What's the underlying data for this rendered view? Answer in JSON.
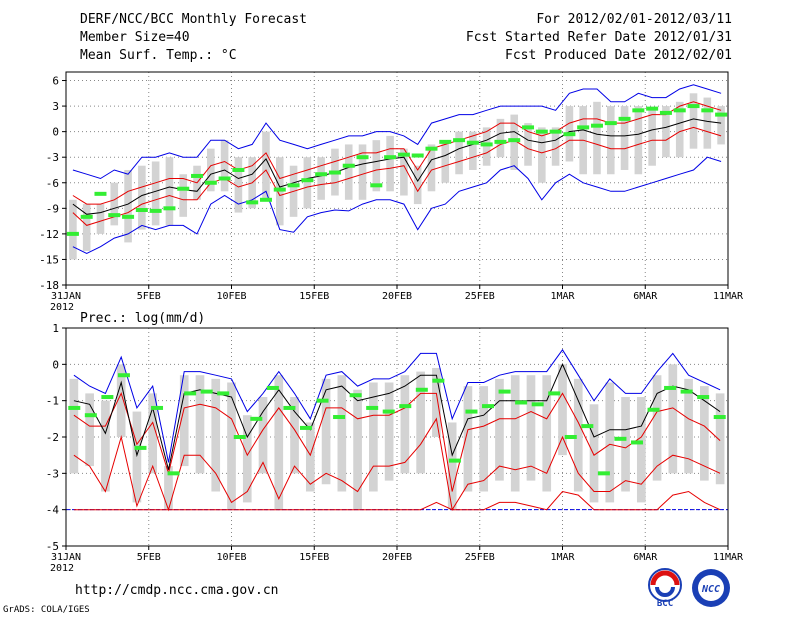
{
  "header": {
    "left": [
      "DERF/NCC/BCC Monthly Forecast",
      "Member Size=40",
      "Mean Surf. Temp.: °C"
    ],
    "right": [
      "For 2012/02/01-2012/03/11",
      "Fcst Started Refer Date 2012/01/31",
      "Fcst Produced Date 2012/02/01"
    ]
  },
  "footer": {
    "url": "http://cmdp.ncc.cma.gov.cn",
    "credit": "GrADS: COLA/IGES",
    "logo_left_text": "BCC",
    "logo_right_text": "NCC"
  },
  "chart_data": [
    {
      "type": "line",
      "title": "Mean Surf. Temp.: °C",
      "ylabel": "",
      "ylim": [
        -18,
        7
      ],
      "yticks": [
        6,
        3,
        0,
        -3,
        -6,
        -9,
        -12,
        -15,
        -18
      ],
      "ytick_labels": [
        "6",
        "3",
        "0",
        "-3",
        "-6",
        "-9",
        "-12",
        "-15",
        "-18"
      ],
      "xlim": [
        0,
        40
      ],
      "xticks": [
        0,
        5,
        10,
        15,
        20,
        25,
        30,
        35,
        40
      ],
      "xtick_labels": [
        "31JAN",
        "5FEB",
        "10FEB",
        "15FEB",
        "20FEB",
        "25FEB",
        "1MAR",
        "6MAR",
        "11MAR"
      ],
      "xtick_sublabel": "2012",
      "series": [
        {
          "name": "ensemble max",
          "color": "#0000e6",
          "values": [
            -4.5,
            -5,
            -5.5,
            -4.5,
            -5,
            -3,
            -3,
            -2.5,
            -3,
            -3,
            -1,
            -1,
            -2,
            -1.5,
            1,
            -1,
            -1.5,
            -2,
            -1.5,
            -1,
            -0.5,
            -0.5,
            0,
            0,
            -0.5,
            -1.5,
            1,
            1.5,
            2,
            2,
            2.5,
            3,
            3,
            3,
            3,
            2.5,
            4.5,
            5,
            5,
            3.5,
            3.5,
            4.5,
            4,
            4,
            5,
            5.5,
            5,
            4.5
          ]
        },
        {
          "name": "upper quartile",
          "color": "#e60000",
          "values": [
            -7.5,
            -8.5,
            -8.5,
            -8,
            -7,
            -6.5,
            -6,
            -5.5,
            -5.5,
            -6,
            -4,
            -3.5,
            -4.5,
            -4,
            -2.5,
            -5.5,
            -5,
            -4.5,
            -4,
            -3.5,
            -3,
            -2.5,
            -2.5,
            -2,
            -2,
            -4.5,
            -2,
            -1.5,
            -1,
            -0.5,
            0,
            1,
            1,
            0,
            -0.5,
            0,
            1,
            1.5,
            1.5,
            1,
            1,
            1.5,
            2,
            2,
            3,
            3.5,
            3,
            2.5
          ]
        },
        {
          "name": "ensemble mean",
          "color": "#000000",
          "values": [
            -8.5,
            -9.7,
            -9.5,
            -9,
            -8.5,
            -7.5,
            -7,
            -6.5,
            -6.8,
            -7,
            -5,
            -4.5,
            -5.5,
            -5,
            -3.2,
            -6.5,
            -6,
            -5.5,
            -5.2,
            -4.8,
            -4.2,
            -3.8,
            -3.5,
            -3.2,
            -3,
            -5.8,
            -3.3,
            -2.8,
            -2,
            -1.5,
            -1,
            -0.2,
            0,
            -1,
            -1.3,
            -1,
            0,
            0.2,
            -0.3,
            -0.5,
            -0.5,
            -0.3,
            0.2,
            0.5,
            1,
            1.5,
            1.2,
            1
          ]
        },
        {
          "name": "lower quartile",
          "color": "#e60000",
          "values": [
            -9.5,
            -11,
            -10.5,
            -10,
            -9.5,
            -8.5,
            -8,
            -7.5,
            -8,
            -8,
            -6,
            -5.5,
            -6.5,
            -6,
            -4.5,
            -7.5,
            -7,
            -6.5,
            -6.2,
            -6,
            -5.5,
            -5,
            -4.5,
            -4.3,
            -4,
            -7,
            -4.5,
            -4,
            -3.5,
            -3,
            -2.5,
            -1.5,
            -1,
            -2,
            -2.5,
            -2,
            -1,
            -1,
            -1.5,
            -2,
            -2,
            -1.5,
            -1,
            -1,
            0,
            0.5,
            0,
            -0.5
          ]
        },
        {
          "name": "ensemble min",
          "color": "#0000e6",
          "values": [
            -13.5,
            -14.3,
            -13.5,
            -12.5,
            -12,
            -11,
            -11.5,
            -11,
            -11,
            -12,
            -8.5,
            -7.5,
            -8.5,
            -8,
            -7,
            -11.5,
            -11.8,
            -10,
            -9.5,
            -9.2,
            -9.3,
            -8.5,
            -8,
            -8,
            -8.5,
            -11.5,
            -9,
            -8.5,
            -7,
            -6.5,
            -6,
            -4.5,
            -4,
            -5.5,
            -8,
            -6,
            -5,
            -6,
            -6.5,
            -7,
            -7,
            -6.5,
            -6,
            -5.5,
            -5,
            -4.5,
            -3,
            -3.5
          ]
        },
        {
          "name": "observation",
          "color": "#33ee33",
          "values": [
            -12,
            -10,
            -7.3,
            -9.8,
            -10,
            -9.2,
            -9.3,
            -9,
            -6.7,
            -5.2,
            -6,
            -5.5,
            -4.5,
            -8.3,
            -8,
            -6.8,
            -6.3,
            -5.7,
            -5,
            -4.8,
            -4,
            -3,
            -6.3,
            -3,
            -2.7,
            -2.8,
            -2,
            -1.2,
            -1,
            -1.3,
            -1.5,
            -1.2,
            -1,
            0.5,
            0,
            0,
            -0.3,
            0.5,
            0.7,
            1,
            1.5,
            2.5,
            2.7,
            2.2,
            2.5,
            3,
            2.5,
            2
          ]
        }
      ],
      "boxes": {
        "name": "ensemble spread (grey bars)",
        "color": "#d3d3d3",
        "low": [
          -15,
          -14,
          -12,
          -11,
          -13,
          -11.5,
          -11,
          -11,
          -10,
          -8,
          -7,
          -7,
          -9.5,
          -9,
          -8,
          -11,
          -10,
          -9,
          -8,
          -7.5,
          -8,
          -8,
          -7,
          -7,
          -7.5,
          -8.5,
          -7,
          -6,
          -5,
          -4.5,
          -4,
          -3,
          -4.5,
          -4,
          -6,
          -4,
          -3.5,
          -5,
          -5,
          -5,
          -4.5,
          -5,
          -4,
          -3,
          -3,
          -2,
          -2,
          -1.5
        ],
        "high": [
          -8,
          -8.5,
          -8.5,
          -6,
          -4.5,
          -4,
          -3.5,
          -3,
          -5,
          -4,
          -2,
          -1,
          -3,
          -3,
          0,
          -3,
          -4,
          -3,
          -3,
          -2,
          -1.5,
          -1.5,
          -1,
          -0.5,
          -2,
          -4,
          -1.5,
          -1,
          0,
          0,
          0.5,
          1.5,
          2,
          1,
          0.5,
          0.5,
          3,
          3,
          3.5,
          3,
          3,
          3,
          2.5,
          3,
          3.5,
          4.5,
          4,
          3
        ]
      }
    },
    {
      "type": "line",
      "title": "Prec.: log(mm/d)",
      "ylabel": "",
      "ylim": [
        -5,
        1
      ],
      "yticks": [
        1,
        0,
        -1,
        -2,
        -3,
        -4,
        -5
      ],
      "ytick_labels": [
        "1",
        "0",
        "-1",
        "-2",
        "-3",
        "-4",
        "-5"
      ],
      "xlim": [
        0,
        40
      ],
      "xticks": [
        0,
        5,
        10,
        15,
        20,
        25,
        30,
        35,
        40
      ],
      "xtick_labels": [
        "31JAN",
        "5FEB",
        "10FEB",
        "15FEB",
        "20FEB",
        "25FEB",
        "1MAR",
        "6MAR",
        "11MAR"
      ],
      "xtick_sublabel": "2012",
      "baseline": -4,
      "series": [
        {
          "name": "ensemble max",
          "color": "#0000e6",
          "values": [
            -0.3,
            -0.6,
            -0.8,
            0.2,
            -1.2,
            -0.6,
            -2.7,
            -0.2,
            -0.2,
            -0.3,
            -0.4,
            -1.3,
            -0.8,
            -0.2,
            -0.8,
            -1.5,
            -0.3,
            -0.2,
            -0.6,
            -0.4,
            -0.4,
            -0.2,
            0.3,
            0.3,
            -1.5,
            -0.5,
            -0.5,
            -0.3,
            -0.2,
            -0.2,
            -0.2,
            0.4,
            -0.3,
            -1,
            -0.4,
            -0.8,
            -0.8,
            -0.2,
            0.3,
            -0.3,
            -0.5,
            -0.7
          ]
        },
        {
          "name": "upper quartile",
          "color": "#e60000",
          "values": [
            -1.4,
            -1.7,
            -1.7,
            -0.8,
            -2.2,
            -1.6,
            -3,
            -1.2,
            -1.1,
            -1.2,
            -1.5,
            -2.5,
            -1.8,
            -1.2,
            -1.8,
            -2.5,
            -1.2,
            -1.2,
            -1.5,
            -1.4,
            -1.4,
            -1.2,
            -0.8,
            -0.8,
            -3.5,
            -1.8,
            -1.7,
            -1.5,
            -1.5,
            -1.3,
            -1.5,
            -0.8,
            -1.6,
            -2.5,
            -2.2,
            -2.3,
            -2,
            -1.3,
            -1.2,
            -1.5,
            -1.7,
            -2.1
          ]
        },
        {
          "name": "ensemble mean",
          "color": "#000000",
          "values": [
            -1,
            -1.1,
            -1.9,
            -0.5,
            -2.5,
            -1.2,
            -2.9,
            -0.8,
            -0.7,
            -0.8,
            -0.9,
            -2,
            -1.3,
            -0.7,
            -1.3,
            -1.8,
            -0.7,
            -0.6,
            -1,
            -0.9,
            -0.8,
            -0.6,
            -0.3,
            -0.3,
            -2.5,
            -1.5,
            -1.4,
            -1,
            -1,
            -1,
            -1,
            0,
            -1,
            -2,
            -1.8,
            -1.8,
            -1.7,
            -0.8,
            -0.6,
            -0.7,
            -1,
            -1.3
          ]
        },
        {
          "name": "lower quartile",
          "color": "#e60000",
          "values": [
            -2.5,
            -2.8,
            -3.5,
            -2,
            -3.9,
            -2.8,
            -4,
            -2.5,
            -2.5,
            -3,
            -3.8,
            -3.5,
            -2.7,
            -3.7,
            -2.8,
            -3.3,
            -3,
            -3.2,
            -3.5,
            -2.8,
            -2.8,
            -2.7,
            -2.2,
            -1.5,
            -4,
            -3.3,
            -3.2,
            -2.8,
            -2.9,
            -2.8,
            -3,
            -2,
            -3,
            -3.5,
            -3.5,
            -3.2,
            -3.3,
            -2.8,
            -2.5,
            -2.6,
            -2.8,
            -3
          ]
        },
        {
          "name": "ensemble min",
          "color": "#e60000",
          "values": [
            -4,
            -4,
            -4,
            -4,
            -4,
            -4,
            -4,
            -4,
            -4,
            -4,
            -4,
            -4,
            -4,
            -4,
            -4,
            -4,
            -4,
            -4,
            -4,
            -4,
            -4,
            -4,
            -4,
            -3.8,
            -4,
            -4,
            -4,
            -3.8,
            -3.8,
            -3.9,
            -4,
            -3.5,
            -3.6,
            -4,
            -4,
            -4,
            -4,
            -4,
            -3.6,
            -3.5,
            -3.8,
            -4
          ]
        },
        {
          "name": "observation",
          "color": "#33ee33",
          "values": [
            -1.2,
            -1.4,
            -0.9,
            -0.3,
            -2.3,
            -1.2,
            -3,
            -0.8,
            -0.75,
            -0.8,
            -2,
            -1.5,
            -0.65,
            -1.2,
            -1.75,
            -1,
            -1.45,
            -0.85,
            -1.2,
            -1.3,
            -1.15,
            -0.7,
            -0.45,
            -2.65,
            -1.3,
            -1.15,
            -0.75,
            -1.05,
            -1.1,
            -0.8,
            -2,
            -1.7,
            -3,
            -2.05,
            -2.15,
            -1.25,
            -0.65,
            -0.75,
            -0.9,
            -1.45
          ]
        }
      ],
      "boxes": {
        "name": "ensemble spread (grey bars)",
        "color": "#d3d3d3",
        "low": [
          -3,
          -2.8,
          -3.5,
          -2,
          -3.8,
          -3,
          -4,
          -2.8,
          -3,
          -3.5,
          -4,
          -3.8,
          -3,
          -4,
          -3,
          -3.5,
          -3.3,
          -3.5,
          -4,
          -3.5,
          -3.2,
          -3,
          -3,
          -2,
          -4,
          -3.5,
          -3.5,
          -3.2,
          -3.5,
          -3.2,
          -3.5,
          -2.5,
          -3.5,
          -3.8,
          -3.8,
          -3.5,
          -3.8,
          -3.2,
          -3,
          -3,
          -3.2,
          -3.3
        ],
        "high": [
          -0.4,
          -0.8,
          -1,
          0,
          -1.3,
          -0.8,
          -2.8,
          -0.3,
          -0.3,
          -0.4,
          -0.5,
          -1.4,
          -0.9,
          -0.3,
          -0.9,
          -1.6,
          -0.4,
          -0.3,
          -0.7,
          -0.5,
          -0.5,
          -0.3,
          -0.2,
          -0.1,
          -1.6,
          -0.6,
          -0.6,
          -0.4,
          -0.3,
          -0.3,
          -0.3,
          0,
          -0.4,
          -1.1,
          -0.5,
          -0.9,
          -0.9,
          -0.3,
          0,
          -0.4,
          -0.6,
          -0.8
        ]
      }
    }
  ]
}
